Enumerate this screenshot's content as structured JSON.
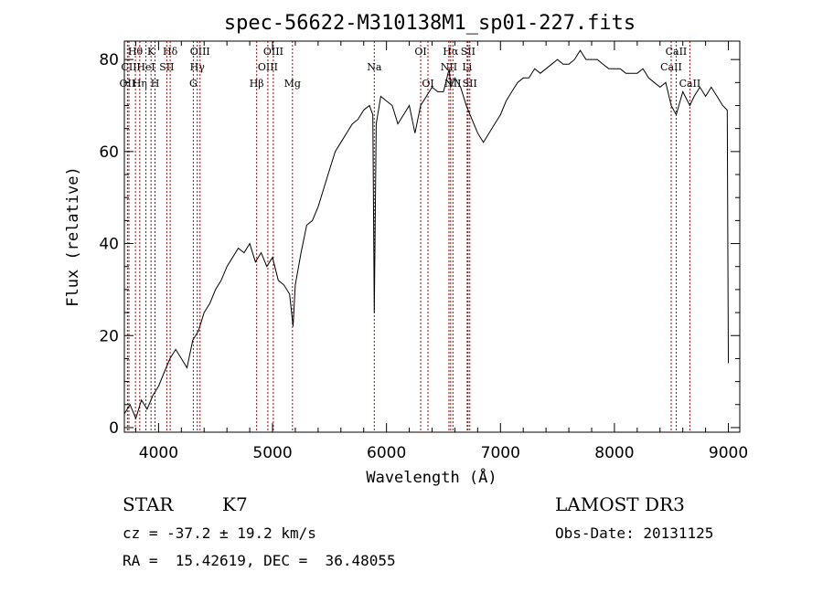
{
  "chart_data": {
    "type": "line",
    "title": "spec-56622-M310138M1_sp01-227.fits",
    "xlabel": "Wavelength (Å)",
    "ylabel": "Flux (relative)",
    "xlim": [
      3700,
      9100
    ],
    "ylim": [
      -1,
      84
    ],
    "xticks": [
      4000,
      5000,
      6000,
      7000,
      8000,
      9000
    ],
    "yticks": [
      0,
      20,
      40,
      60,
      80
    ],
    "grid": false,
    "series": [
      {
        "x": [
          3700,
          3750,
          3800,
          3850,
          3900,
          3950,
          4000,
          4050,
          4100,
          4150,
          4200,
          4250,
          4300,
          4350,
          4400,
          4450,
          4500,
          4550,
          4600,
          4650,
          4700,
          4750,
          4800,
          4850,
          4900,
          4950,
          5000,
          5050,
          5100,
          5150,
          5180,
          5200,
          5250,
          5300,
          5350,
          5400,
          5450,
          5500,
          5550,
          5600,
          5650,
          5700,
          5750,
          5800,
          5850,
          5880,
          5893,
          5910,
          5950,
          6000,
          6050,
          6100,
          6150,
          6200,
          6250,
          6300,
          6350,
          6400,
          6450,
          6500,
          6550,
          6563,
          6600,
          6650,
          6700,
          6750,
          6800,
          6850,
          6900,
          6950,
          7000,
          7050,
          7100,
          7150,
          7200,
          7250,
          7300,
          7350,
          7400,
          7450,
          7500,
          7550,
          7600,
          7650,
          7700,
          7750,
          7800,
          7850,
          7900,
          7950,
          8000,
          8050,
          8100,
          8150,
          8200,
          8250,
          8300,
          8350,
          8400,
          8450,
          8498,
          8542,
          8600,
          8662,
          8700,
          8750,
          8800,
          8850,
          8900,
          8950,
          8990,
          9000
        ],
        "y": [
          3,
          5,
          2,
          6,
          4,
          7,
          9,
          12,
          15,
          17,
          15,
          13,
          19,
          21,
          25,
          27,
          30,
          32,
          35,
          37,
          39,
          38,
          40,
          36,
          38,
          35,
          37,
          32,
          31,
          29,
          22,
          31,
          38,
          44,
          45,
          48,
          52,
          56,
          60,
          62,
          64,
          66,
          67,
          69,
          70,
          68,
          25,
          66,
          72,
          71,
          70,
          66,
          68,
          70,
          64,
          70,
          72,
          74,
          73,
          73,
          78,
          74,
          76,
          74,
          70,
          67,
          64,
          62,
          64,
          66,
          68,
          71,
          73,
          75,
          76,
          76,
          78,
          77,
          78,
          79,
          80,
          79,
          79,
          80,
          82,
          80,
          80,
          80,
          79,
          78,
          78,
          78,
          77,
          77,
          77,
          78,
          76,
          75,
          74,
          75,
          70,
          68,
          73,
          70,
          72,
          74,
          72,
          74,
          72,
          70,
          69,
          14
        ]
      }
    ],
    "line_markers": [
      {
        "name": "Hθ",
        "x": 3797,
        "row": 1
      },
      {
        "name": "OII",
        "x": 3727,
        "row": 3
      },
      {
        "name": "CII",
        "x": 3740,
        "row": 2
      },
      {
        "name": "Hη",
        "x": 3835,
        "row": 3
      },
      {
        "name": "HeI",
        "x": 3889,
        "row": 2
      },
      {
        "name": "K",
        "x": 3934,
        "row": 1
      },
      {
        "name": "H",
        "x": 3969,
        "row": 3
      },
      {
        "name": "SII",
        "x": 4072,
        "row": 2
      },
      {
        "name": "Hδ",
        "x": 4102,
        "row": 1
      },
      {
        "name": "OIII",
        "x": 4364,
        "row": 1
      },
      {
        "name": "Hγ",
        "x": 4340,
        "row": 2
      },
      {
        "name": "G",
        "x": 4305,
        "row": 3
      },
      {
        "name": "Hβ",
        "x": 4861,
        "row": 3
      },
      {
        "name": "OIII",
        "x": 4959,
        "row": 2
      },
      {
        "name": "OIII",
        "x": 5007,
        "row": 1
      },
      {
        "name": "Mg",
        "x": 5175,
        "row": 3
      },
      {
        "name": "Na",
        "x": 5893,
        "row": 2
      },
      {
        "name": "OI",
        "x": 6300,
        "row": 1
      },
      {
        "name": "OI",
        "x": 6364,
        "row": 3
      },
      {
        "name": "NII",
        "x": 6548,
        "row": 2
      },
      {
        "name": "Hα",
        "x": 6563,
        "row": 1
      },
      {
        "name": "NII",
        "x": 6583,
        "row": 3
      },
      {
        "name": "Li",
        "x": 6708,
        "row": 2
      },
      {
        "name": "SII",
        "x": 6716,
        "row": 1
      },
      {
        "name": "SII",
        "x": 6731,
        "row": 3
      },
      {
        "name": "CaII",
        "x": 8498,
        "row": 2
      },
      {
        "name": "CaII",
        "x": 8542,
        "row": 1
      },
      {
        "name": "CaII",
        "x": 8662,
        "row": 3
      }
    ]
  },
  "info": {
    "class": "STAR",
    "subclass": "K7",
    "survey": "LAMOST DR3",
    "cz": "cz = -37.2 ± 19.2 km/s",
    "obs_date": "Obs-Date: 20131125",
    "coords": "RA =  15.42619, DEC =  36.48055"
  }
}
